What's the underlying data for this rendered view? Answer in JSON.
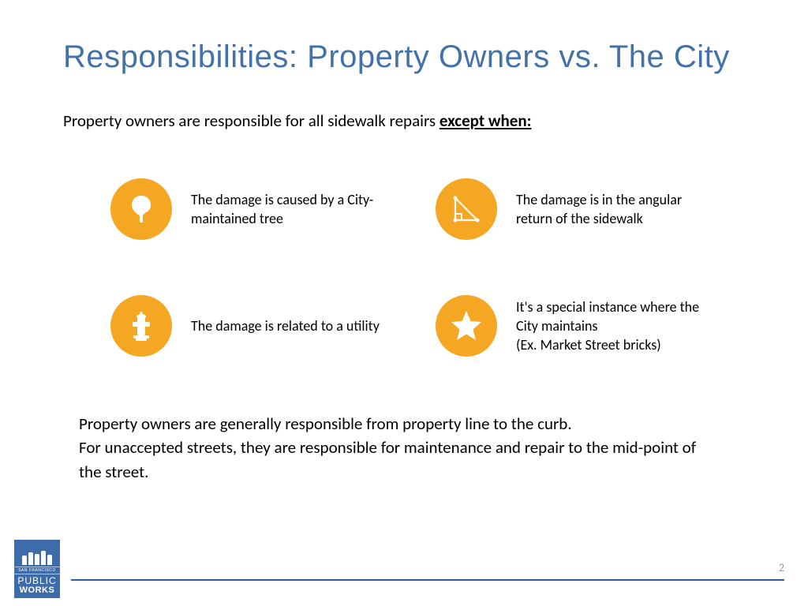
{
  "title": "Responsibilities: Property Owners vs. The City",
  "intro_prefix": "Property owners are responsible for all sidewalk repairs ",
  "intro_emph": "except when:",
  "items": [
    {
      "icon": "tree",
      "text": "The damage is caused by a City-maintained tree"
    },
    {
      "icon": "triangle",
      "text": "The damage is in the angular return of the sidewalk"
    },
    {
      "icon": "hydrant",
      "text": "The damage is related to a utility"
    },
    {
      "icon": "star",
      "text": "It's a special instance where the City maintains\n(Ex. Market Street bricks)"
    }
  ],
  "footer": "Property owners are generally responsible from property line to the curb.\nFor unaccepted streets, they are responsible for maintenance and repair to the mid-point of the street.",
  "page_number": "2",
  "logo": {
    "sf": "SAN FRANCISCO",
    "line1": "PUBLIC",
    "line2": "WORKS"
  },
  "colors": {
    "title": "#4472a8",
    "icon_bg": "#f5a623",
    "icon_fg": "#ffffff",
    "rule": "#2d5c9a",
    "logo_bg": "#3d6ca8",
    "text": "#000000",
    "pagenum": "#9a9a9a"
  },
  "typography": {
    "title_pt": 40,
    "body_pt": 21,
    "item_pt": 18
  }
}
